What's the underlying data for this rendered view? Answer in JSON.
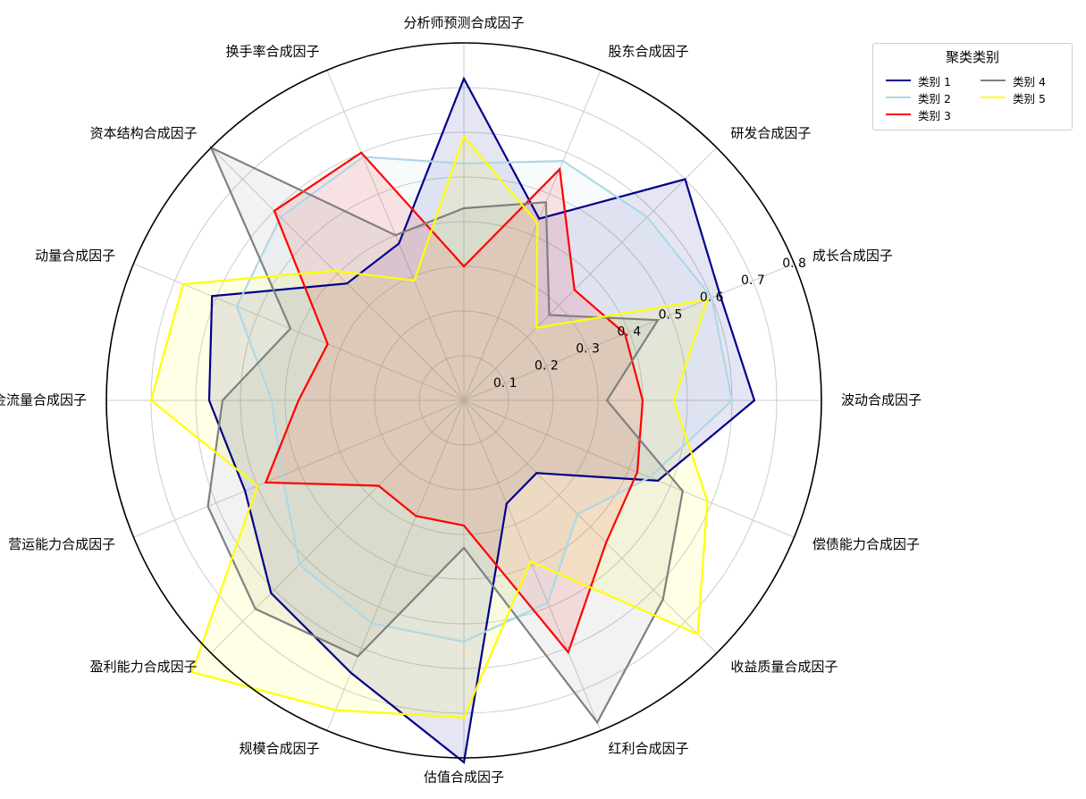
{
  "chart_data": {
    "type": "radar",
    "axes": [
      "分析师预测合成因子",
      "股东合成因子",
      "研发合成因子",
      "成长合成因子",
      "波动合成因子",
      "偿债能力合成因子",
      "收益质量合成因子",
      "红利合成因子",
      "估值合成因子",
      "规模合成因子",
      "盈利能力合成因子",
      "营运能力合成因子",
      "现金流量合成因子",
      "动量合成因子",
      "资本结构合成因子",
      "换手率合成因子"
    ],
    "rlim": [
      0,
      0.8
    ],
    "rticks": [
      0.1,
      0.2,
      0.3,
      0.4,
      0.5,
      0.6,
      0.7,
      0.8
    ],
    "rtick_labels": [
      "0. 1",
      "0. 2",
      "0. 3",
      "0. 4",
      "0. 5",
      "0. 6",
      "0. 7",
      "0. 8"
    ],
    "grid": true,
    "legend_title": "聚类类别",
    "legend_position": "top-right",
    "series": [
      {
        "name": "类别 1",
        "color": "#00008b",
        "values": [
          0.72,
          0.44,
          0.7,
          0.62,
          0.65,
          0.47,
          0.23,
          0.25,
          0.81,
          0.66,
          0.61,
          0.53,
          0.57,
          0.61,
          0.37,
          0.38
        ]
      },
      {
        "name": "类别 2",
        "color": "#add8e6",
        "values": [
          0.53,
          0.58,
          0.58,
          0.6,
          0.6,
          0.45,
          0.36,
          0.49,
          0.54,
          0.54,
          0.52,
          0.44,
          0.43,
          0.55,
          0.58,
          0.59
        ]
      },
      {
        "name": "类别 3",
        "color": "#ff0000",
        "values": [
          0.3,
          0.56,
          0.35,
          0.39,
          0.4,
          0.42,
          0.45,
          0.61,
          0.28,
          0.28,
          0.27,
          0.48,
          0.37,
          0.33,
          0.6,
          0.6
        ]
      },
      {
        "name": "类别 4",
        "color": "#808080",
        "values": [
          0.43,
          0.48,
          0.27,
          0.47,
          0.32,
          0.53,
          0.63,
          0.78,
          0.33,
          0.62,
          0.66,
          0.62,
          0.54,
          0.42,
          0.8,
          0.4
        ]
      },
      {
        "name": "类别 5",
        "color": "#ffff00",
        "values": [
          0.59,
          0.43,
          0.23,
          0.59,
          0.47,
          0.59,
          0.74,
          0.39,
          0.71,
          0.75,
          0.86,
          0.5,
          0.7,
          0.68,
          0.41,
          0.29
        ]
      }
    ]
  }
}
